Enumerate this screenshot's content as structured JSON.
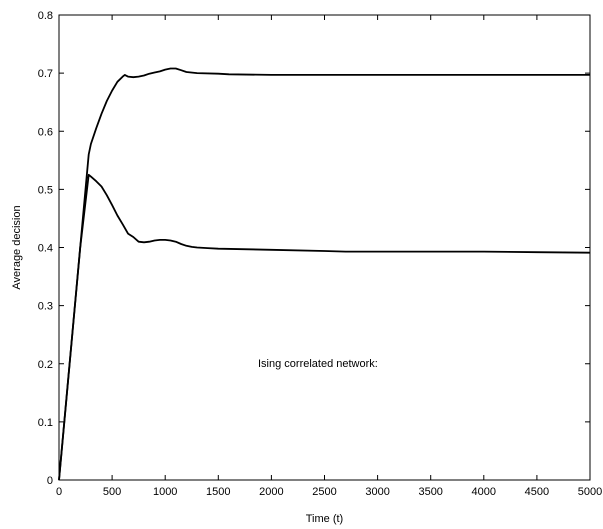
{
  "chart_data": {
    "type": "line",
    "title": "",
    "xlabel": "Time (t)",
    "ylabel": "Average decision",
    "xlim": [
      0,
      5000
    ],
    "ylim": [
      0,
      0.8
    ],
    "xticks": [
      0,
      500,
      1000,
      1500,
      2000,
      2500,
      3000,
      3500,
      4000,
      4500,
      5000
    ],
    "yticks": [
      0,
      0.1,
      0.2,
      0.3,
      0.4,
      0.5,
      0.6,
      0.7,
      0.8
    ],
    "xtick_labels": [
      "0",
      "500",
      "1000",
      "1500",
      "2000",
      "2500",
      "3000",
      "3500",
      "4000",
      "4500",
      "5000"
    ],
    "ytick_labels": [
      "0",
      "0.1",
      "0.2",
      "0.3",
      "0.4",
      "0.5",
      "0.6",
      "0.7",
      "0.8"
    ],
    "grid": false,
    "annotation": "Ising correlated network:",
    "series": [
      {
        "x": [
          0,
          100,
          200,
          280,
          300,
          350,
          400,
          450,
          500,
          550,
          600,
          620,
          650,
          700,
          750,
          800,
          850,
          900,
          950,
          1000,
          1050,
          1100,
          1150,
          1200,
          1300,
          1500,
          1600,
          2000,
          2500,
          3000,
          3500,
          4000,
          4500,
          5000
        ],
        "y": [
          0,
          0.2,
          0.4,
          0.56,
          0.578,
          0.605,
          0.63,
          0.652,
          0.67,
          0.685,
          0.694,
          0.697,
          0.694,
          0.693,
          0.694,
          0.696,
          0.699,
          0.701,
          0.703,
          0.706,
          0.708,
          0.708,
          0.705,
          0.702,
          0.7,
          0.699,
          0.698,
          0.697,
          0.697,
          0.697,
          0.697,
          0.697,
          0.697,
          0.697
        ]
      },
      {
        "x": [
          0,
          100,
          200,
          280,
          300,
          350,
          400,
          450,
          500,
          550,
          600,
          650,
          700,
          750,
          800,
          850,
          900,
          950,
          1000,
          1050,
          1100,
          1150,
          1200,
          1250,
          1300,
          1400,
          1500,
          2000,
          2500,
          2700,
          3000,
          3500,
          4000,
          4500,
          5000
        ],
        "y": [
          0,
          0.2,
          0.4,
          0.525,
          0.522,
          0.514,
          0.505,
          0.49,
          0.473,
          0.455,
          0.44,
          0.424,
          0.418,
          0.41,
          0.409,
          0.41,
          0.412,
          0.413,
          0.413,
          0.412,
          0.41,
          0.406,
          0.403,
          0.401,
          0.4,
          0.399,
          0.398,
          0.396,
          0.394,
          0.393,
          0.393,
          0.393,
          0.393,
          0.392,
          0.391
        ]
      }
    ]
  }
}
